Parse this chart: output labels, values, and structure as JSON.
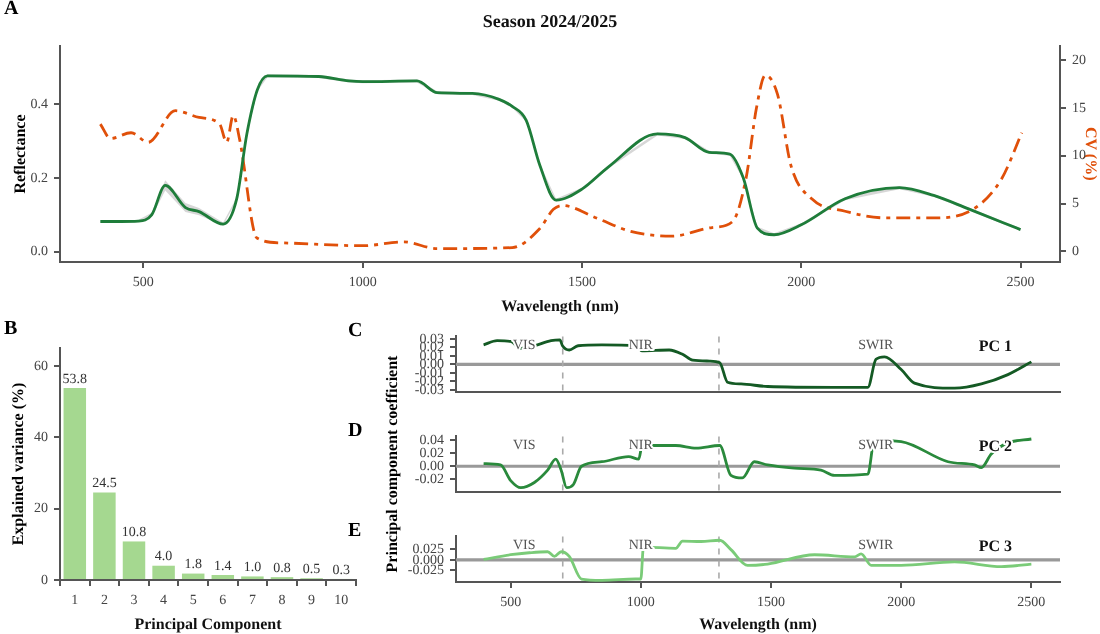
{
  "chart_data": [
    {
      "type": "line",
      "title": "Season 2024/2025",
      "annotations": [
        "A"
      ],
      "xlabel": "Wavelength (nm)",
      "ylabel": "Reflectance",
      "y2label": "CV (%)",
      "xlim": [
        310,
        2590
      ],
      "xticks": [
        500,
        1000,
        1500,
        2000,
        2500
      ],
      "ylim": [
        -0.028,
        0.56
      ],
      "yticks": [
        {
          "value": 0,
          "label": "0.0"
        },
        {
          "value": 0.2,
          "label": "0.2"
        },
        {
          "value": 0.4,
          "label": "0.4"
        }
      ],
      "y2lim": [
        -1.1,
        21.5
      ],
      "y2ticks": [
        0,
        5,
        10,
        15,
        20
      ],
      "series": [
        {
          "color": "#1e7d3a",
          "x": [
            402,
            450,
            488,
            519,
            550,
            596,
            627,
            682,
            713,
            736,
            760,
            783,
            900,
            969,
            1000,
            1124,
            1170,
            1250,
            1311,
            1341,
            1373,
            1404,
            1441,
            1500,
            1560,
            1672,
            1735,
            1790,
            1837,
            1868,
            1900,
            1938,
            2000,
            2100,
            2224,
            2302,
            2380,
            2500
          ],
          "values": [
            0.082,
            0.082,
            0.083,
            0.1,
            0.18,
            0.12,
            0.109,
            0.075,
            0.144,
            0.32,
            0.44,
            0.478,
            0.476,
            0.464,
            0.462,
            0.464,
            0.432,
            0.43,
            0.414,
            0.395,
            0.357,
            0.235,
            0.14,
            0.17,
            0.23,
            0.32,
            0.31,
            0.27,
            0.265,
            0.2,
            0.064,
            0.046,
            0.073,
            0.144,
            0.174,
            0.153,
            0.117,
            0.06
          ],
          "lower": [
            0.079,
            0.079,
            0.08,
            0.094,
            0.166,
            0.108,
            0.099,
            0.071,
            0.14,
            0.316,
            0.436,
            0.474,
            0.472,
            0.46,
            0.458,
            0.46,
            0.428,
            0.426,
            0.41,
            0.391,
            0.353,
            0.231,
            0.136,
            0.166,
            0.226,
            0.316,
            0.306,
            0.266,
            0.261,
            0.196,
            0.06,
            0.042,
            0.069,
            0.14,
            0.17,
            0.149,
            0.113,
            0.056
          ],
          "upper": [
            0.085,
            0.085,
            0.086,
            0.106,
            0.194,
            0.132,
            0.119,
            0.079,
            0.148,
            0.324,
            0.444,
            0.482,
            0.48,
            0.468,
            0.466,
            0.468,
            0.436,
            0.434,
            0.418,
            0.399,
            0.361,
            0.239,
            0.144,
            0.174,
            0.234,
            0.324,
            0.314,
            0.274,
            0.269,
            0.204,
            0.068,
            0.05,
            0.077,
            0.148,
            0.178,
            0.157,
            0.121,
            0.064
          ]
        },
        {
          "color": "#e0500a",
          "axis": "y2",
          "line_style": "dashed",
          "x": [
            402,
            425,
            472,
            511,
            573,
            627,
            674,
            690,
            705,
            720,
            759,
            814,
            1000,
            1093,
            1170,
            1341,
            1404,
            1435,
            1455,
            1533,
            1611,
            1704,
            1797,
            1843,
            1874,
            1898,
            1918,
            1946,
            1977,
            2024,
            2100,
            2194,
            2302,
            2395,
            2457,
            2503
          ],
          "values": [
            13.3,
            11.8,
            12.4,
            11.4,
            14.7,
            14,
            13.3,
            11.4,
            14.2,
            11.6,
            1.4,
            0.9,
            0.6,
            1.0,
            0.3,
            0.4,
            2.4,
            4.4,
            4.8,
            3.5,
            2.1,
            1.6,
            2.5,
            3.1,
            7.6,
            15,
            18.4,
            16.4,
            8.9,
            5.5,
            4.2,
            3.5,
            3.5,
            4.5,
            7.6,
            12.4
          ]
        }
      ]
    },
    {
      "type": "bar",
      "annotations": [
        "B"
      ],
      "xlabel": "Principal Component",
      "ylabel": "Explained variance (%)",
      "categories": [
        "1",
        "2",
        "3",
        "4",
        "5",
        "6",
        "7",
        "8",
        "9",
        "10"
      ],
      "values": [
        53.8,
        24.5,
        10.8,
        4.0,
        1.8,
        1.4,
        1.0,
        0.8,
        0.5,
        0.3
      ],
      "value_labels": [
        "53.8",
        "24.5",
        "10.8",
        "4.0",
        "1.8",
        "1.4",
        "1.0",
        "0.8",
        "0.5",
        "0.3"
      ],
      "color": "#a5d890",
      "ylim": [
        0,
        65
      ],
      "yticks": [
        0,
        20,
        40,
        60
      ]
    },
    {
      "type": "line",
      "tick_labels": "y",
      "annotations": [
        "C",
        "VIS",
        "NIR",
        "SWIR"
      ],
      "xlim": [
        290,
        2610
      ],
      "xticks": [
        500,
        1000,
        1500,
        2000,
        2500
      ],
      "ylim": [
        -0.032,
        0.033
      ],
      "yticks": [
        {
          "value": -0.03,
          "label": "-0.03"
        },
        {
          "value": -0.02,
          "label": "-0.02"
        },
        {
          "value": -0.01,
          "label": "-0.01"
        },
        {
          "value": 0,
          "label": "0.00"
        },
        {
          "value": 0.01,
          "label": "0.01"
        },
        {
          "value": 0.02,
          "label": "0.02"
        },
        {
          "value": 0.03,
          "label": "0.03"
        }
      ],
      "ref_lines": [
        {
          "axis": "y",
          "value": 0,
          "color": "#999999"
        },
        {
          "axis": "x",
          "value": 700,
          "color": "#aaaaaa",
          "line_style": "dashed"
        },
        {
          "axis": "x",
          "value": 1300,
          "color": "#aaaaaa",
          "line_style": "dashed"
        }
      ],
      "series": [
        {
          "name": "PC 1",
          "color": "#145a24",
          "x": [
            396,
            448,
            500,
            539,
            591,
            655,
            689,
            699,
            725,
            759,
            850,
            979,
            1005,
            1109,
            1160,
            1199,
            1264,
            1303,
            1333,
            1385,
            1487,
            1744,
            1872,
            1903,
            1936,
            2000,
            2051,
            2205,
            2308,
            2410,
            2500
          ],
          "values": [
            0.023,
            0.028,
            0.027,
            0.019,
            0.022,
            0.028,
            0.029,
            0.022,
            0.017,
            0.022,
            0.023,
            0.022,
            0.016,
            0.017,
            0.012,
            0.005,
            0.004,
            0.002,
            -0.021,
            -0.023,
            -0.026,
            -0.027,
            -0.027,
            0.006,
            0.009,
            -0.006,
            -0.022,
            -0.028,
            -0.023,
            -0.012,
            0.003
          ]
        }
      ]
    },
    {
      "type": "line",
      "tick_labels": "y",
      "ylabel": "Principal component coefficient",
      "annotations": [
        "D",
        "VIS",
        "NIR",
        "SWIR"
      ],
      "xlim": [
        290,
        2610
      ],
      "xticks": [
        500,
        1000,
        1500,
        2000,
        2500
      ],
      "ylim": [
        -0.039,
        0.046
      ],
      "yticks": [
        {
          "value": -0.02,
          "label": "-0.02"
        },
        {
          "value": 0,
          "label": "0.00"
        },
        {
          "value": 0.02,
          "label": "0.02"
        },
        {
          "value": 0.04,
          "label": "0.04"
        }
      ],
      "ref_lines": [
        {
          "axis": "y",
          "value": 0,
          "color": "#999999"
        },
        {
          "axis": "x",
          "value": 700,
          "color": "#aaaaaa",
          "line_style": "dashed"
        },
        {
          "axis": "x",
          "value": 1300,
          "color": "#aaaaaa",
          "line_style": "dashed"
        }
      ],
      "series": [
        {
          "name": "PC 2",
          "color": "#2a8a3c",
          "x": [
            396,
            461,
            500,
            539,
            591,
            642,
            673,
            694,
            715,
            741,
            772,
            850,
            953,
            992,
            1005,
            1134,
            1212,
            1303,
            1346,
            1390,
            1436,
            1487,
            1590,
            1692,
            1744,
            1872,
            1897,
            2000,
            2180,
            2282,
            2308,
            2346,
            2410,
            2500
          ],
          "values": [
            0.004,
            0.002,
            -0.022,
            -0.033,
            -0.025,
            -0.006,
            0.011,
            -0.006,
            -0.033,
            -0.028,
            0,
            0.007,
            0.015,
            0.011,
            0.032,
            0.032,
            0.028,
            0.032,
            -0.014,
            -0.018,
            0.007,
            0.002,
            -0.003,
            -0.006,
            -0.014,
            -0.012,
            0.04,
            0.038,
            0.007,
            0.002,
            -0.002,
            0.019,
            0.036,
            0.042
          ]
        }
      ]
    },
    {
      "type": "line",
      "xlabel": "Wavelength (nm)",
      "annotations": [
        "E",
        "VIS",
        "NIR",
        "SWIR"
      ],
      "xlim": [
        290,
        2610
      ],
      "xticks": [
        500,
        1000,
        1500,
        2000,
        2500
      ],
      "ylim": [
        -0.052,
        0.055
      ],
      "yticks": [
        {
          "value": -0.025,
          "label": "-0.025"
        },
        {
          "value": 0,
          "label": "0.000"
        },
        {
          "value": 0.025,
          "label": "0.025"
        }
      ],
      "ref_lines": [
        {
          "axis": "y",
          "value": 0,
          "color": "#999999"
        },
        {
          "axis": "x",
          "value": 700,
          "color": "#aaaaaa",
          "line_style": "dashed"
        },
        {
          "axis": "x",
          "value": 1300,
          "color": "#aaaaaa",
          "line_style": "dashed"
        }
      ],
      "series": [
        {
          "name": "PC 3",
          "color": "#7acb78",
          "x": [
            396,
            500,
            642,
            668,
            694,
            725,
            772,
            850,
            979,
            1000,
            1010,
            1134,
            1160,
            1231,
            1303,
            1346,
            1410,
            1487,
            1667,
            1821,
            1846,
            1885,
            2000,
            2205,
            2385,
            2500
          ],
          "values": [
            0.001,
            0.012,
            0.019,
            0.008,
            0.019,
            0.008,
            -0.045,
            -0.048,
            -0.045,
            -0.045,
            0.03,
            0.027,
            0.044,
            0.043,
            0.046,
            0.024,
            -0.013,
            -0.01,
            0.012,
            0.007,
            0.014,
            -0.013,
            -0.013,
            -0.005,
            -0.016,
            -0.01
          ]
        }
      ]
    }
  ]
}
